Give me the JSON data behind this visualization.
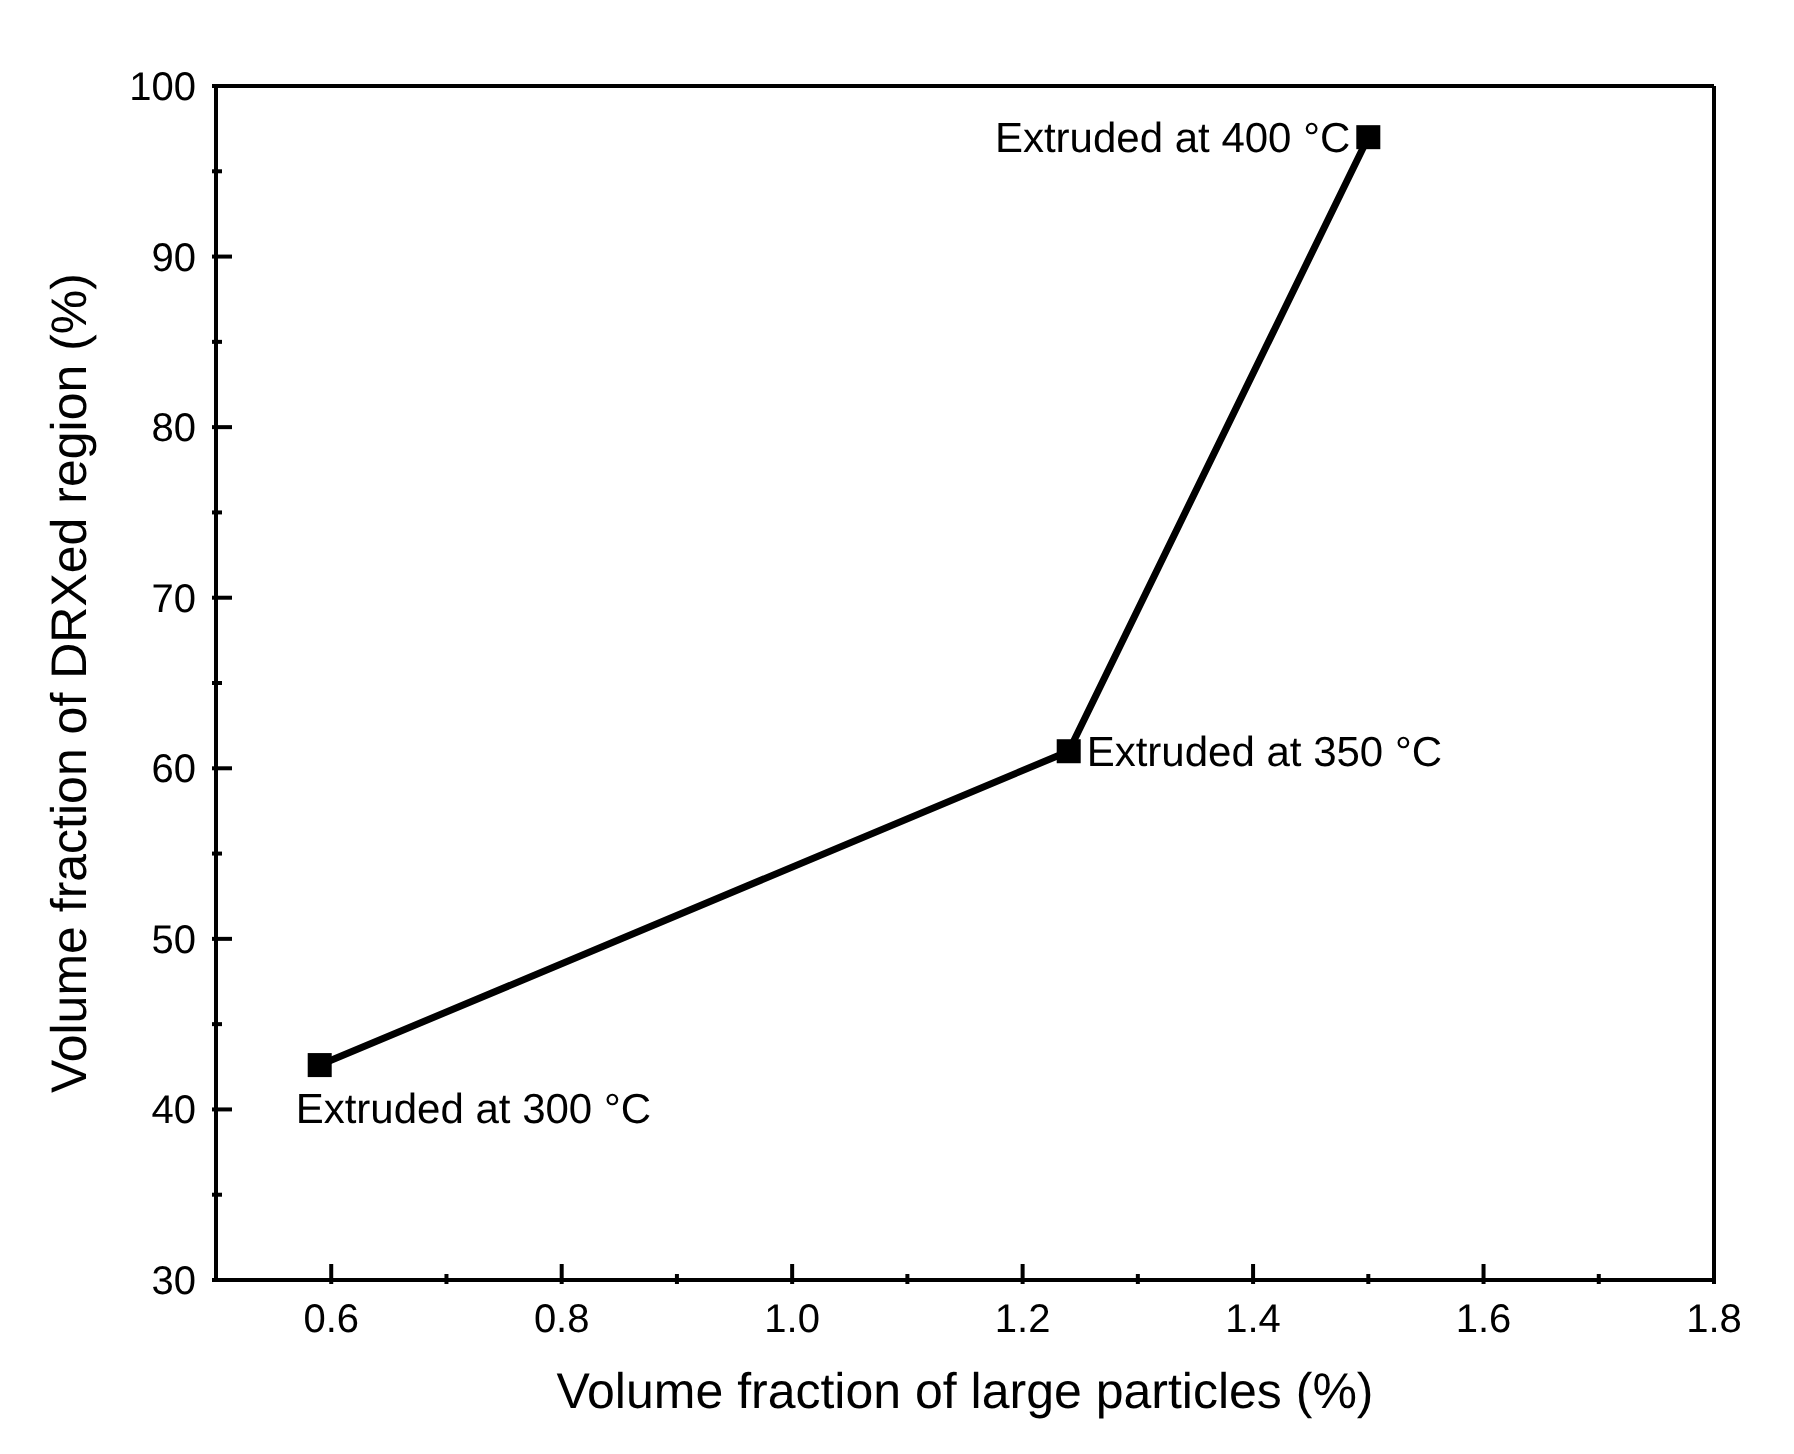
{
  "chart_data": {
    "type": "line",
    "xlabel": "Volume fraction of large particles (%)",
    "ylabel": "Volume fraction of DRXed region (%)",
    "x": [
      0.59,
      1.24,
      1.5
    ],
    "series": [
      {
        "color": "#000000",
        "values": [
          42.6,
          61,
          97
        ]
      }
    ],
    "marker": "square",
    "line_style": "solid",
    "xlim": [
      0.5,
      1.8
    ],
    "xticks": [
      0.6,
      {
        "value": 0.7,
        "label": null
      },
      0.8,
      {
        "value": 0.9,
        "label": null
      },
      {
        "value": 1,
        "label": "1.0"
      },
      {
        "value": 1.1,
        "label": null
      },
      1.2,
      {
        "value": 1.3,
        "label": null
      },
      1.4,
      {
        "value": 1.5,
        "label": null
      },
      1.6,
      {
        "value": 1.7,
        "label": null
      },
      1.8
    ],
    "ylim": [
      30,
      100
    ],
    "yticks": [
      30,
      {
        "value": 35,
        "label": null
      },
      40,
      {
        "value": 45,
        "label": null
      },
      50,
      {
        "value": 55,
        "label": null
      },
      60,
      {
        "value": 65,
        "label": null
      },
      70,
      {
        "value": 75,
        "label": null
      },
      80,
      {
        "value": 85,
        "label": null
      },
      90,
      {
        "value": 95,
        "label": null
      },
      100
    ],
    "annotations": [
      {
        "text": "Extruded at 300 °C",
        "x": 0.59,
        "y": 42.6
      },
      {
        "text": "Extruded at 350 °C",
        "x": 1.24,
        "y": 61
      },
      {
        "text": "Extruded at 400 °C",
        "x": 1.5,
        "y": 97
      }
    ]
  }
}
